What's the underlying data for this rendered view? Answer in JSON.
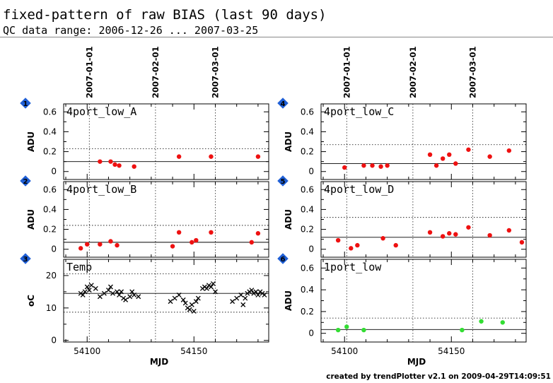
{
  "header": {
    "title": "fixed-pattern of raw BIAS (last 90 days)",
    "subtitle": "QC data range: 2006-12-26 ... 2007-03-25"
  },
  "footer": {
    "credit": "created by trendPlotter v2.1 on 2009-04-29T14:09:51"
  },
  "colors": {
    "badge": "#1f5fd6",
    "marker_red": "#ee1111",
    "marker_green": "#33dd33",
    "marker_black": "#000000"
  },
  "chart_data": [
    {
      "id": "1",
      "type": "scatter",
      "name": "4port_low_A",
      "ylabel": "ADU",
      "ylim": [
        -0.08,
        0.68
      ],
      "yticks": [
        0,
        0.2,
        0.4,
        0.6
      ],
      "ytick_labels": [
        "0",
        "0.2",
        "0.4",
        "0.6"
      ],
      "marker": "dot",
      "color": "#ee1111",
      "mean": 0.1,
      "threshold_upper": 0.23,
      "threshold_lower": null,
      "x": [
        54106,
        54111,
        54113,
        54115,
        54122,
        54143,
        54158,
        54180
      ],
      "y": [
        0.1,
        0.1,
        0.07,
        0.06,
        0.05,
        0.15,
        0.15,
        0.15
      ]
    },
    {
      "id": "2",
      "type": "scatter",
      "name": "4port_low_B",
      "ylabel": "ADU",
      "ylim": [
        -0.08,
        0.68
      ],
      "yticks": [
        0,
        0.2,
        0.4,
        0.6
      ],
      "ytick_labels": [
        "0",
        "0.2",
        "0.4",
        "0.6"
      ],
      "marker": "dot",
      "color": "#ee1111",
      "mean": 0.07,
      "threshold_upper": 0.24,
      "threshold_lower": null,
      "x": [
        54097,
        54100,
        54106,
        54111,
        54114,
        54140,
        54143,
        54149,
        54151,
        54158,
        54177,
        54180
      ],
      "y": [
        0.01,
        0.05,
        0.05,
        0.08,
        0.04,
        0.03,
        0.17,
        0.07,
        0.09,
        0.17,
        0.07,
        0.16
      ]
    },
    {
      "id": "3",
      "type": "scatter",
      "name": "Temp",
      "ylabel": "oC",
      "ylim": [
        -0.5,
        25
      ],
      "yticks": [
        0,
        10,
        20
      ],
      "ytick_labels": [
        "0",
        "10",
        "20"
      ],
      "marker": "cross",
      "color": "#000000",
      "mean": 14.5,
      "threshold_upper": 20.5,
      "threshold_lower": 8.7,
      "x": [
        54097,
        54098,
        54099,
        54100,
        54101,
        54102,
        54104,
        54106,
        54108,
        54110,
        54111,
        54112,
        54114,
        54115,
        54116,
        54117,
        54118,
        54120,
        54121,
        54122,
        54124,
        54139,
        54141,
        54143,
        54145,
        54146,
        54147,
        54148,
        54149,
        54150,
        54151,
        54152,
        54154,
        54155,
        54156,
        54157,
        54158,
        54159,
        54160,
        54168,
        54170,
        54172,
        54173,
        54174,
        54175,
        54176,
        54177,
        54178,
        54179,
        54180,
        54181,
        54182,
        54183
      ],
      "y": [
        14.5,
        14,
        15,
        16.5,
        15.5,
        17,
        16,
        13.5,
        14.5,
        15.5,
        16.5,
        14.5,
        15,
        14,
        15,
        13,
        12.5,
        13.5,
        15,
        14,
        13.5,
        12,
        13,
        14,
        12.5,
        11.5,
        10,
        9.5,
        11,
        9,
        12,
        13,
        16,
        16.5,
        16,
        17,
        16.5,
        17.5,
        15,
        12,
        13,
        14,
        11,
        13,
        14.5,
        15,
        15.5,
        14.5,
        15,
        14,
        15,
        14.5,
        14
      ]
    },
    {
      "id": "4",
      "type": "scatter",
      "name": "4port_low_C",
      "ylabel": "ADU",
      "ylim": [
        -0.08,
        0.68
      ],
      "yticks": [
        0,
        0.2,
        0.4,
        0.6
      ],
      "ytick_labels": [
        "0",
        "0.2",
        "0.4",
        "0.6"
      ],
      "marker": "dot",
      "color": "#ee1111",
      "mean": 0.08,
      "threshold_upper": 0.27,
      "threshold_lower": null,
      "x": [
        54100,
        54109,
        54113,
        54117,
        54120,
        54140,
        54143,
        54146,
        54149,
        54152,
        54158,
        54168,
        54177
      ],
      "y": [
        0.04,
        0.06,
        0.06,
        0.05,
        0.06,
        0.17,
        0.06,
        0.13,
        0.17,
        0.08,
        0.22,
        0.15,
        0.21
      ]
    },
    {
      "id": "5",
      "type": "scatter",
      "name": "4port_low_D",
      "ylabel": "ADU",
      "ylim": [
        -0.08,
        0.68
      ],
      "yticks": [
        0,
        0.2,
        0.4,
        0.6
      ],
      "ytick_labels": [
        "0",
        "0.2",
        "0.4",
        "0.6"
      ],
      "marker": "dot",
      "color": "#ee1111",
      "mean": 0.12,
      "threshold_upper": 0.32,
      "threshold_lower": null,
      "x": [
        54097,
        54103,
        54106,
        54118,
        54124,
        54140,
        54146,
        54149,
        54152,
        54158,
        54168,
        54177,
        54183
      ],
      "y": [
        0.09,
        0.01,
        0.04,
        0.11,
        0.04,
        0.17,
        0.13,
        0.16,
        0.15,
        0.22,
        0.14,
        0.19,
        0.07
      ]
    },
    {
      "id": "6",
      "type": "scatter",
      "name": "1port_low",
      "ylabel": "ADU",
      "ylim": [
        -0.08,
        0.68
      ],
      "yticks": [
        0,
        0.2,
        0.4,
        0.6
      ],
      "ytick_labels": [
        "0",
        "0.2",
        "0.4",
        "0.6"
      ],
      "marker": "dot",
      "color": "#33dd33",
      "mean": 0.035,
      "threshold_upper": 0.14,
      "threshold_lower": null,
      "x": [
        54097,
        54101,
        54109,
        54155,
        54164,
        54174
      ],
      "y": [
        0.03,
        0.06,
        0.03,
        0.03,
        0.11,
        0.1
      ]
    }
  ],
  "x_axis": {
    "label": "MJD",
    "range": [
      54089,
      54185
    ],
    "ticks": [
      54100,
      54150
    ],
    "tick_labels": [
      "54100",
      "54150"
    ],
    "minor_step": 10
  },
  "date_markers": [
    {
      "mjd": 54101,
      "label": "2007-01-01"
    },
    {
      "mjd": 54132,
      "label": "2007-02-01"
    },
    {
      "mjd": 54160,
      "label": "2007-03-01"
    }
  ]
}
